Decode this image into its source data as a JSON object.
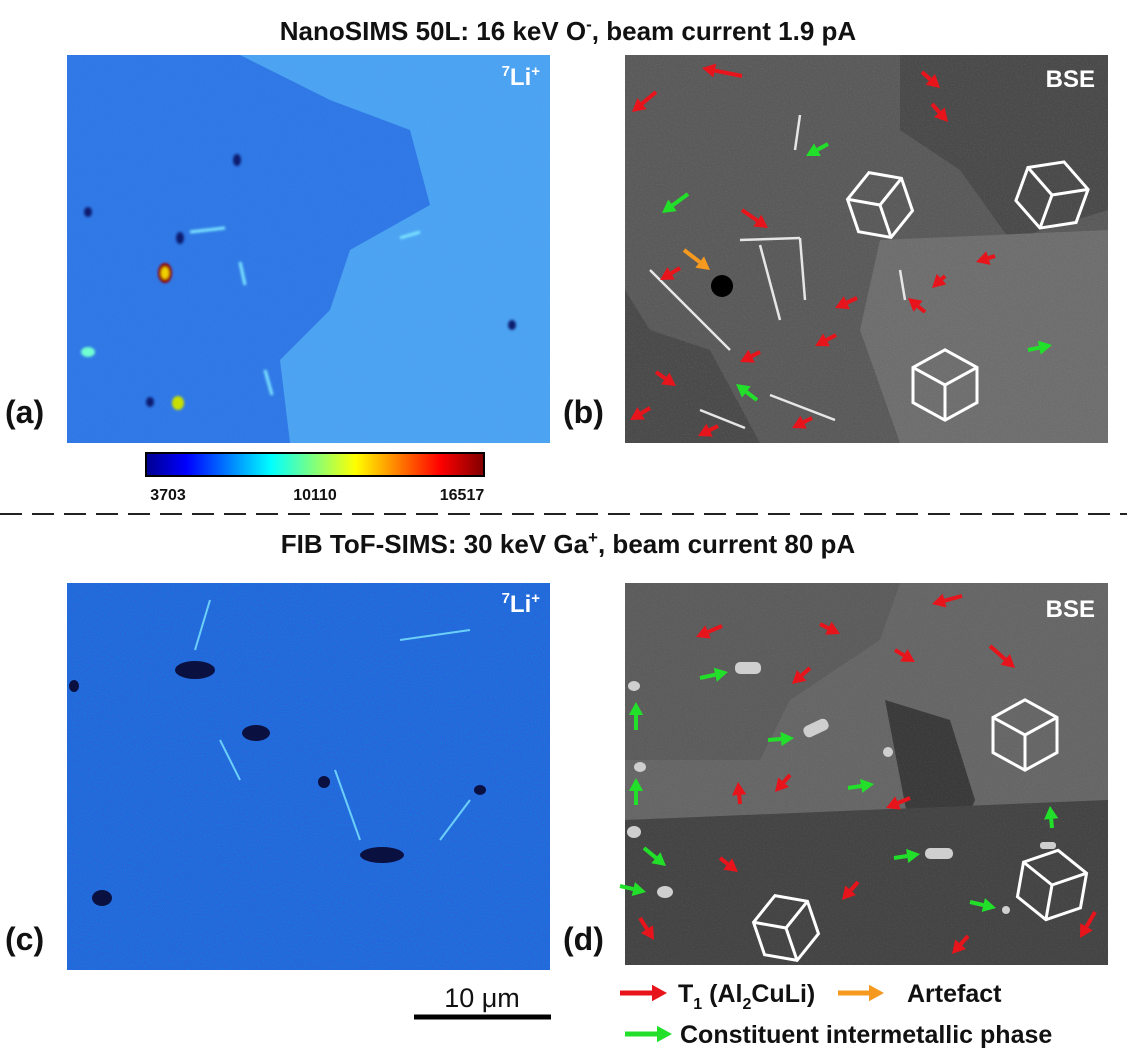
{
  "sections": [
    {
      "title": {
        "pre": "NanoSIMS 50L: 16 keV O",
        "sup": "-",
        "post": ", beam current 1.9 pA"
      }
    },
    {
      "title": {
        "pre": "FIB ToF-SIMS: 30 keV Ga",
        "sup": "+",
        "post": ", beam current 80 pA"
      }
    }
  ],
  "panels": [
    {
      "label": "(a)",
      "tag": {
        "mass": "7",
        "element": "Li",
        "charge": "+"
      }
    },
    {
      "label": "(b)",
      "tag": "BSE"
    },
    {
      "label": "(c)",
      "tag": {
        "mass": "7",
        "element": "Li",
        "charge": "+"
      }
    },
    {
      "label": "(d)",
      "tag": "BSE"
    }
  ],
  "colorbar": {
    "ticks": [
      "3703",
      "10110",
      "16517"
    ]
  },
  "scale_bar": {
    "label": "10 μm"
  },
  "legend": [
    {
      "parts": [
        "T",
        "1",
        " (Al",
        "2",
        "CuLi)"
      ],
      "color": "#e8141b"
    },
    {
      "parts": [
        "Artefact"
      ],
      "color": "#f59a1e"
    },
    {
      "parts": [
        "Constituent intermetallic phase"
      ],
      "color": "#22e02a"
    }
  ]
}
